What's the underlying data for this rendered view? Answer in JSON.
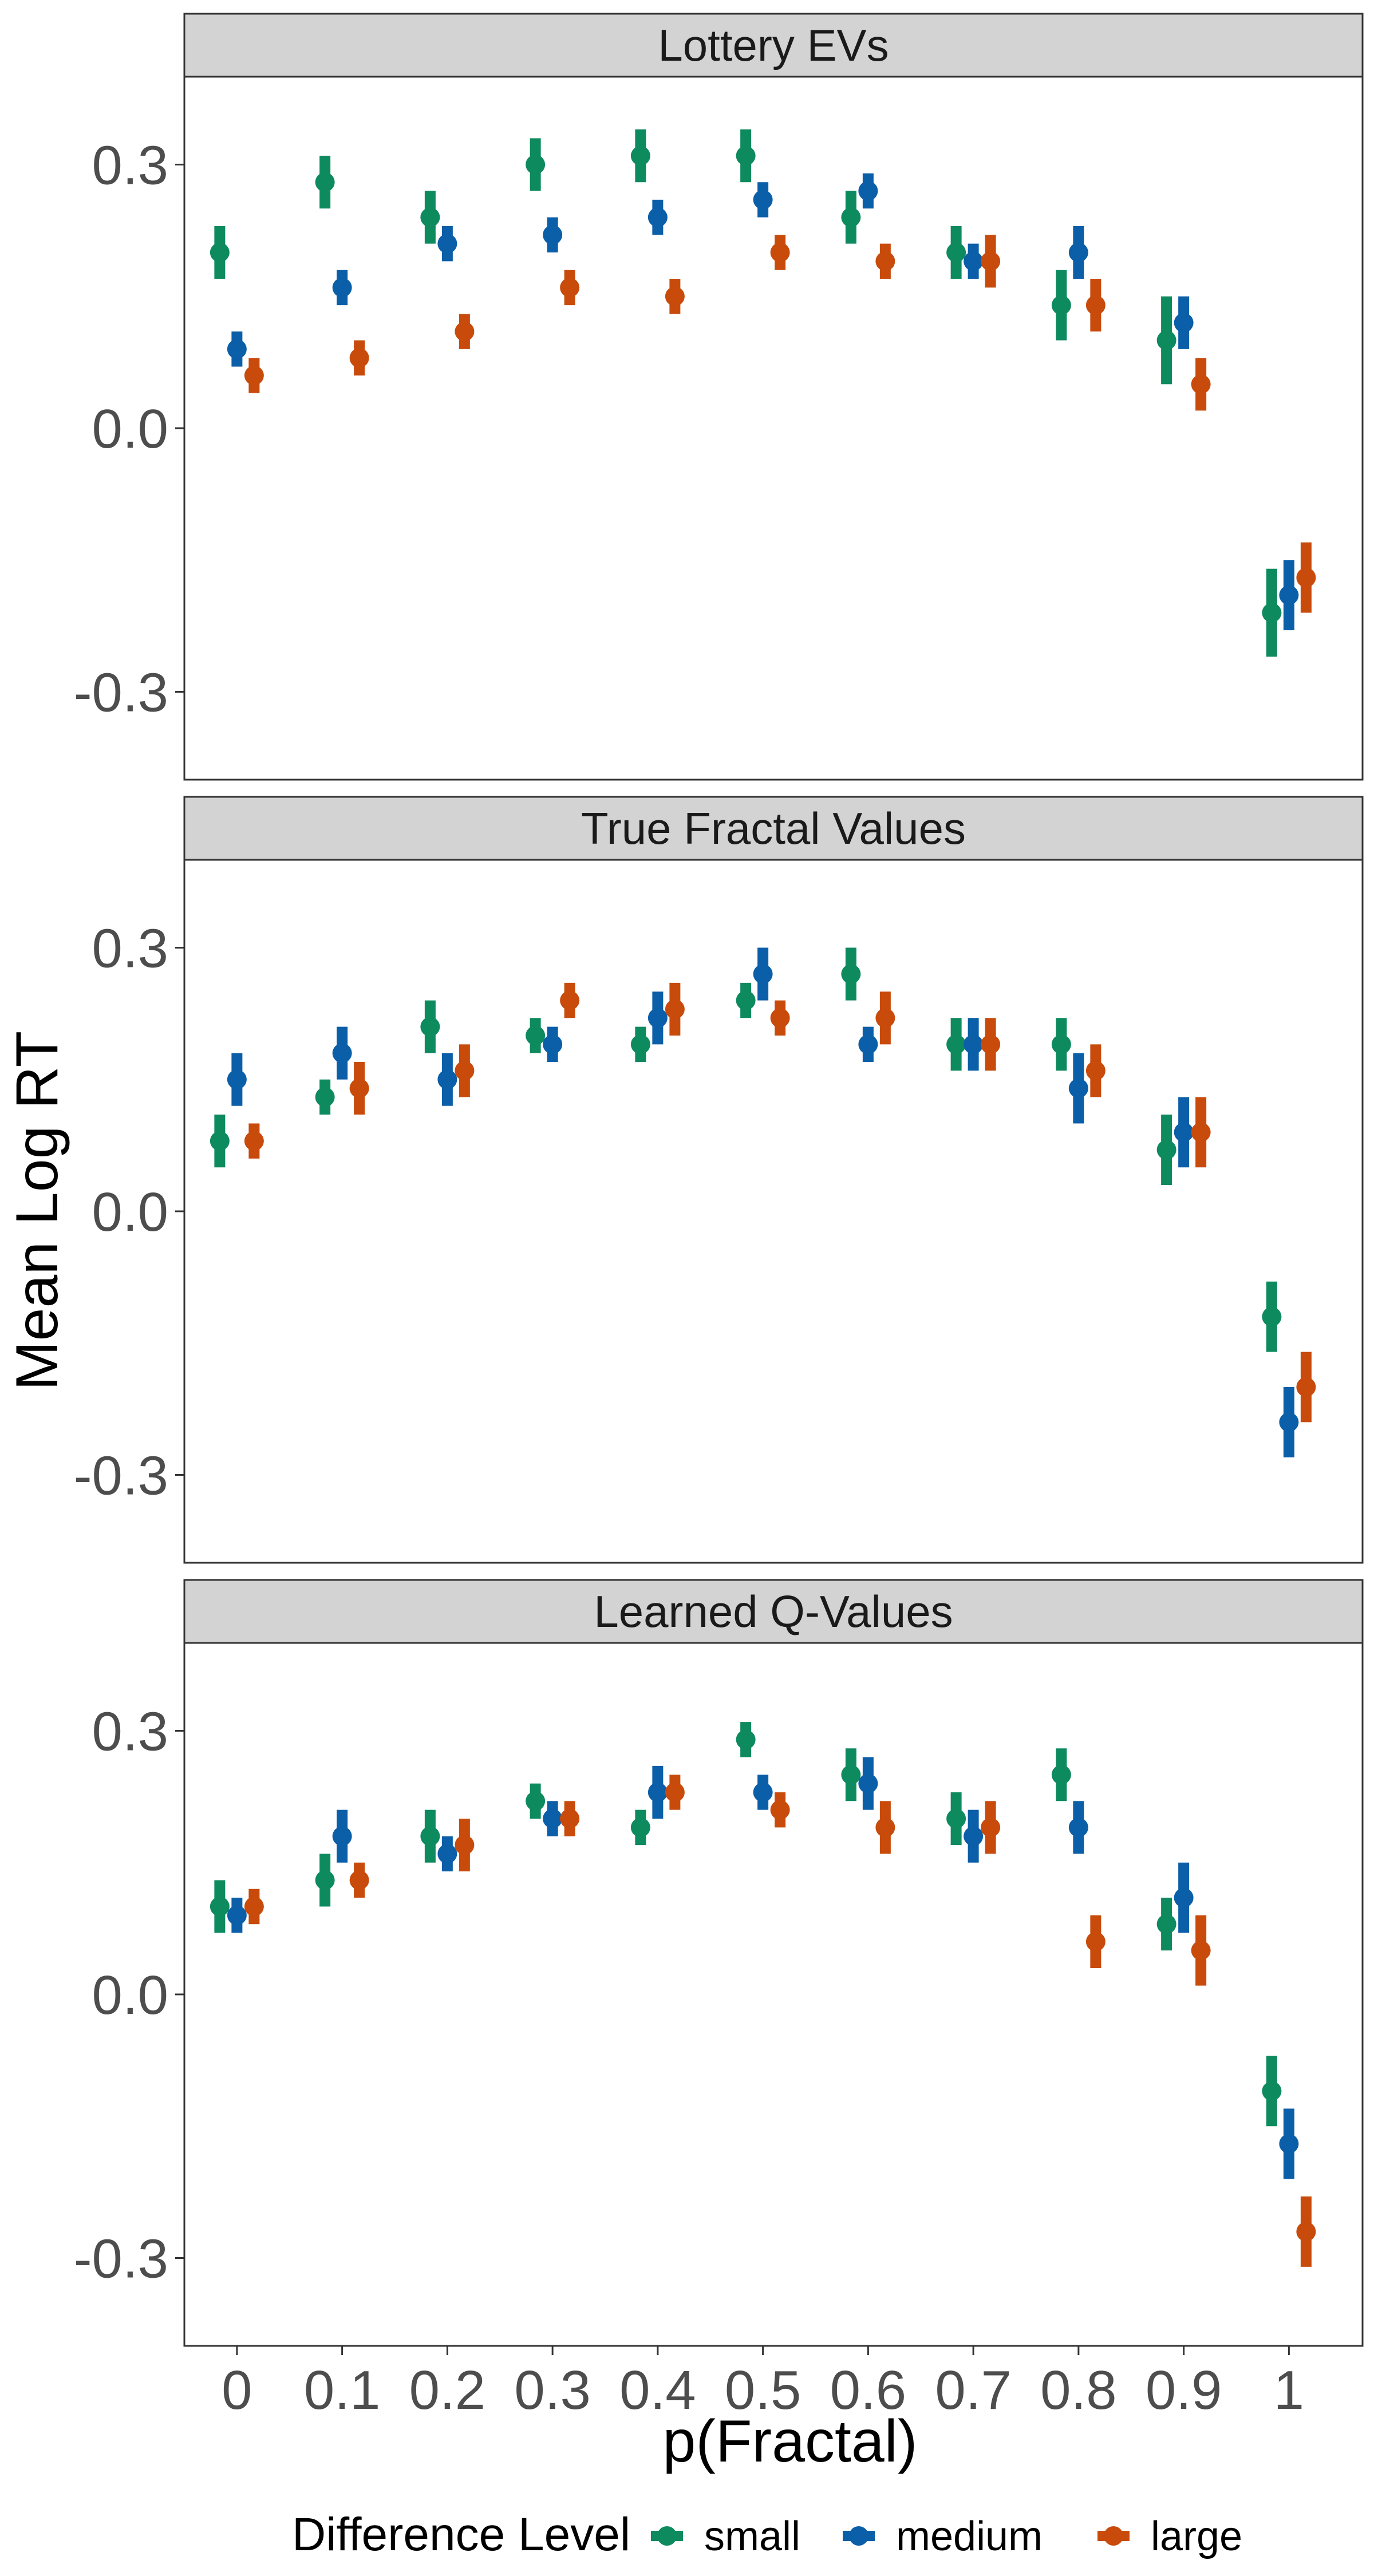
{
  "chart_data": {
    "type": "scatter",
    "ylabel": "Mean Log RT",
    "xlabel": "p(Fractal)",
    "x": [
      0,
      0.1,
      0.2,
      0.3,
      0.4,
      0.5,
      0.6,
      0.7,
      0.8,
      0.9,
      1
    ],
    "x_tick_labels": [
      "0",
      "0.1",
      "0.2",
      "0.3",
      "0.4",
      "0.5",
      "0.6",
      "0.7",
      "0.8",
      "0.9",
      "1"
    ],
    "ylim": [
      -0.4,
      0.4
    ],
    "y_ticks": [
      0.3,
      0.0,
      -0.3
    ],
    "y_tick_labels": [
      "0.3",
      "0.0",
      "-0.3"
    ],
    "grid": false,
    "legend": {
      "title": "Difference Level",
      "position": "bottom",
      "items": [
        {
          "name": "small",
          "color": "#0e8a5f"
        },
        {
          "name": "medium",
          "color": "#0b5ea8"
        },
        {
          "name": "large",
          "color": "#c84b0c"
        }
      ]
    },
    "panels": [
      {
        "title": "Lottery EVs",
        "series": [
          {
            "name": "small",
            "color": "#0e8a5f",
            "values": [
              0.2,
              0.28,
              0.24,
              0.3,
              0.31,
              0.31,
              0.24,
              0.2,
              0.14,
              0.1,
              -0.21
            ],
            "error": [
              0.03,
              0.03,
              0.03,
              0.03,
              0.03,
              0.03,
              0.03,
              0.03,
              0.04,
              0.05,
              0.05
            ]
          },
          {
            "name": "medium",
            "color": "#0b5ea8",
            "values": [
              0.09,
              0.16,
              0.21,
              0.22,
              0.24,
              0.26,
              0.27,
              0.19,
              0.2,
              0.12,
              -0.19
            ],
            "error": [
              0.02,
              0.02,
              0.02,
              0.02,
              0.02,
              0.02,
              0.02,
              0.02,
              0.03,
              0.03,
              0.04
            ]
          },
          {
            "name": "large",
            "color": "#c84b0c",
            "values": [
              0.06,
              0.08,
              0.11,
              0.16,
              0.15,
              0.2,
              0.19,
              0.19,
              0.14,
              0.05,
              -0.17
            ],
            "error": [
              0.02,
              0.02,
              0.02,
              0.02,
              0.02,
              0.02,
              0.02,
              0.03,
              0.03,
              0.03,
              0.04
            ]
          }
        ]
      },
      {
        "title": "True Fractal Values",
        "series": [
          {
            "name": "small",
            "color": "#0e8a5f",
            "values": [
              0.08,
              0.13,
              0.21,
              0.2,
              0.19,
              0.24,
              0.27,
              0.19,
              0.19,
              0.07,
              -0.12
            ],
            "error": [
              0.03,
              0.02,
              0.03,
              0.02,
              0.02,
              0.02,
              0.03,
              0.03,
              0.03,
              0.04,
              0.04
            ]
          },
          {
            "name": "medium",
            "color": "#0b5ea8",
            "values": [
              0.15,
              0.18,
              0.15,
              0.19,
              0.22,
              0.27,
              0.19,
              0.19,
              0.14,
              0.09,
              -0.24
            ],
            "error": [
              0.03,
              0.03,
              0.03,
              0.02,
              0.03,
              0.03,
              0.02,
              0.03,
              0.04,
              0.04,
              0.04
            ]
          },
          {
            "name": "large",
            "color": "#c84b0c",
            "values": [
              0.08,
              0.14,
              0.16,
              0.24,
              0.23,
              0.22,
              0.22,
              0.19,
              0.16,
              0.09,
              -0.2
            ],
            "error": [
              0.02,
              0.03,
              0.03,
              0.02,
              0.03,
              0.02,
              0.03,
              0.03,
              0.03,
              0.04,
              0.04
            ]
          }
        ]
      },
      {
        "title": "Learned Q-Values",
        "series": [
          {
            "name": "small",
            "color": "#0e8a5f",
            "values": [
              0.1,
              0.13,
              0.18,
              0.22,
              0.19,
              0.29,
              0.25,
              0.2,
              0.25,
              0.08,
              -0.11
            ],
            "error": [
              0.03,
              0.03,
              0.03,
              0.02,
              0.02,
              0.02,
              0.03,
              0.03,
              0.03,
              0.03,
              0.04
            ]
          },
          {
            "name": "medium",
            "color": "#0b5ea8",
            "values": [
              0.09,
              0.18,
              0.16,
              0.2,
              0.23,
              0.23,
              0.24,
              0.18,
              0.19,
              0.11,
              -0.17
            ],
            "error": [
              0.02,
              0.03,
              0.02,
              0.02,
              0.03,
              0.02,
              0.03,
              0.03,
              0.03,
              0.04,
              0.04
            ]
          },
          {
            "name": "large",
            "color": "#c84b0c",
            "values": [
              0.1,
              0.13,
              0.17,
              0.2,
              0.23,
              0.21,
              0.19,
              0.19,
              0.06,
              0.05,
              -0.27
            ],
            "error": [
              0.02,
              0.02,
              0.03,
              0.02,
              0.02,
              0.02,
              0.03,
              0.03,
              0.03,
              0.04,
              0.04
            ]
          }
        ]
      }
    ]
  }
}
